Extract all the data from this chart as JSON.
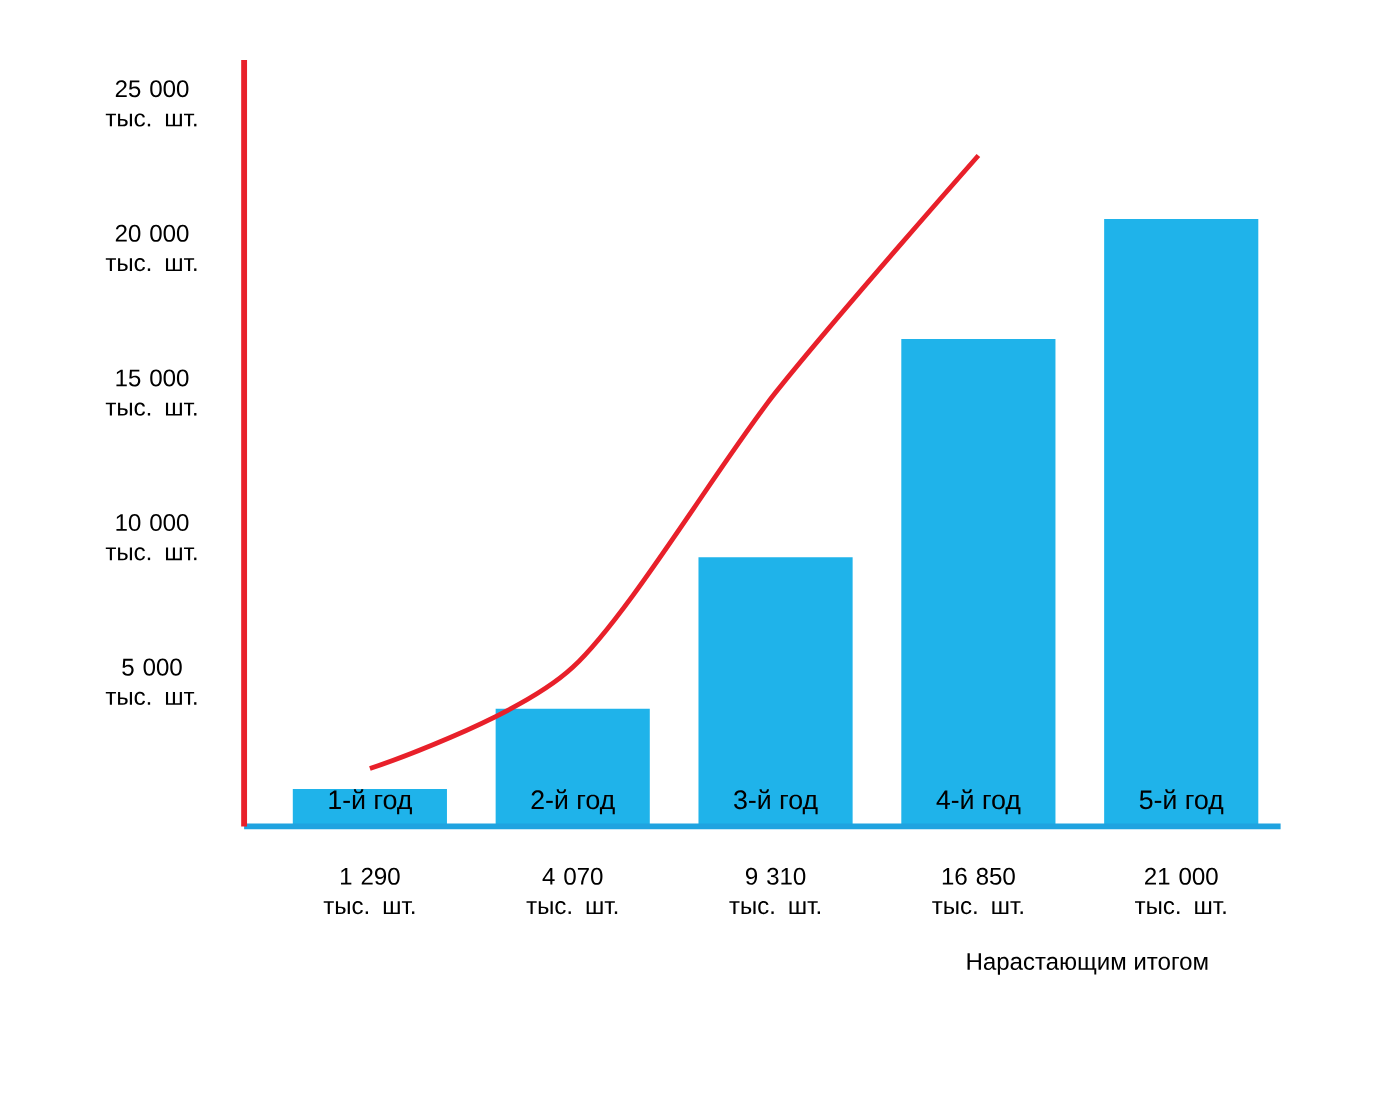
{
  "chart_data": {
    "type": "bar",
    "annotations": [
      "Нарастающим итогом"
    ],
    "categories": [
      "1-й год",
      "2-й год",
      "3-й год",
      "4-й год",
      "5-й год"
    ],
    "ylim": [
      0,
      26500
    ],
    "yticks": [
      {
        "value": 5000,
        "label": "5 000 тыс. шт."
      },
      {
        "value": 10000,
        "label": "10 000 тыс. шт."
      },
      {
        "value": 15000,
        "label": "15 000 тыс. шт."
      },
      {
        "value": 20000,
        "label": "20 000 тыс. шт."
      },
      {
        "value": 25000,
        "label": "25 000 тыс. шт."
      }
    ],
    "series": [
      {
        "color": "#1fb3ea",
        "values": [
          1290,
          4070,
          9310,
          16850,
          21000
        ],
        "value_labels": [
          "1 290 тыс. шт.",
          "4 070 тыс. шт.",
          "9 310 тыс. шт.",
          "16 850 тыс. шт.",
          "21 000 тыс. шт."
        ]
      },
      {
        "type": "line",
        "color": "#e8202a",
        "values": [
          2000,
          5500,
          15000,
          23200,
          null
        ]
      }
    ]
  }
}
